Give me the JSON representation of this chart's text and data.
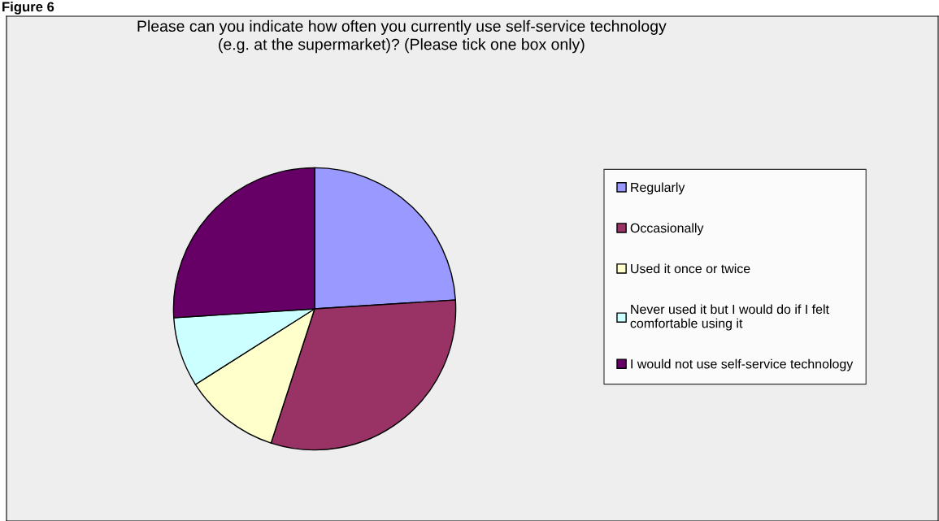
{
  "chart_data": {
    "type": "pie",
    "title": "Please can you indicate how often you currently use self-service technology\n(e.g. at the supermarket)? (Please tick one box only)",
    "categories": [
      "Regularly",
      "Occasionally",
      "Used it once or twice",
      "Never used it but I would do if I felt comfortable using it",
      "I would not use self-service technology"
    ],
    "values": [
      24,
      31,
      11,
      8,
      26
    ],
    "colors": [
      "#9999ff",
      "#993366",
      "#ffffcc",
      "#ccffff",
      "#660066"
    ],
    "legend": "right",
    "annotations": [
      "Figure 6"
    ]
  }
}
